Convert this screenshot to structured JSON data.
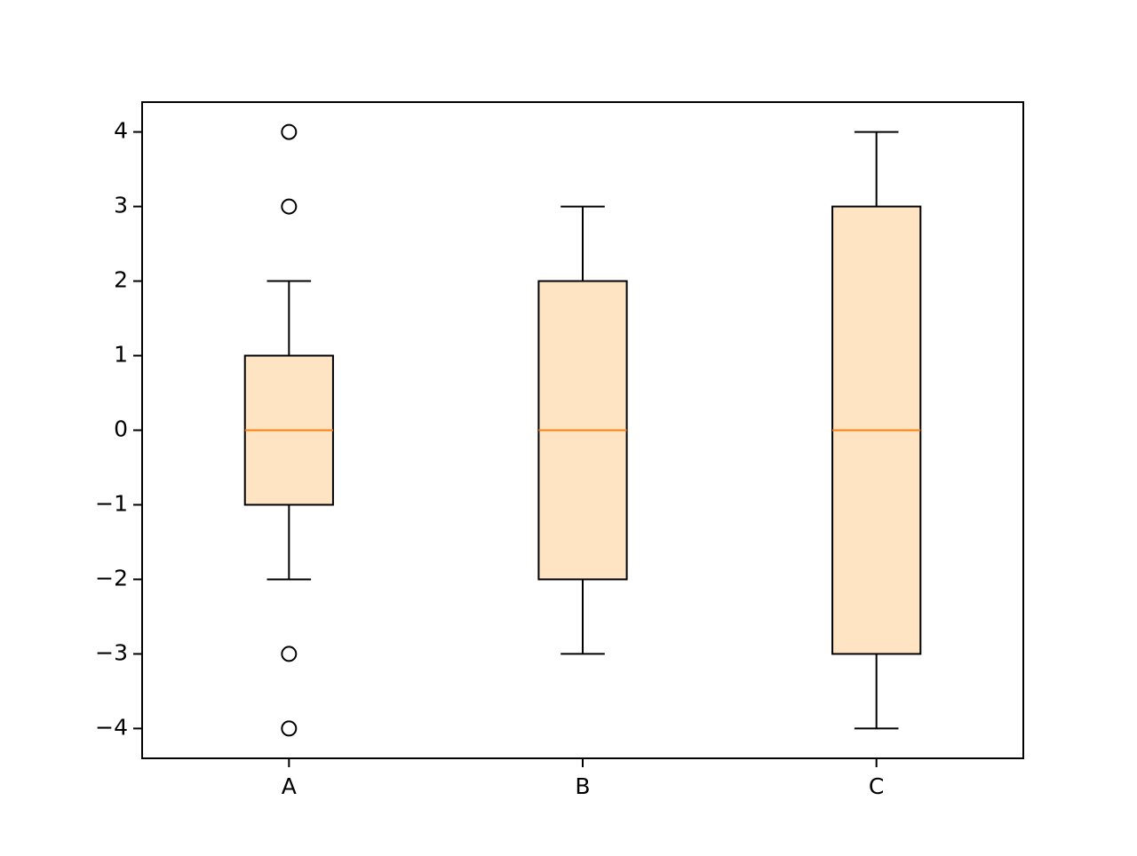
{
  "chart_data": {
    "type": "box",
    "categories": [
      "A",
      "B",
      "C"
    ],
    "boxes": [
      {
        "whislo": -2,
        "q1": -1,
        "med": 0,
        "q3": 1,
        "whishi": 2,
        "fliers": [
          -4,
          -3,
          3,
          4
        ]
      },
      {
        "whislo": -3,
        "q1": -2,
        "med": 0,
        "q3": 2,
        "whishi": 3,
        "fliers": []
      },
      {
        "whislo": -4,
        "q1": -3,
        "med": 0,
        "q3": 3,
        "whishi": 4,
        "fliers": []
      }
    ],
    "color": "#ffe4c4",
    "edge_color": "#000000",
    "median_color": "#ff7f0e",
    "ylim": [
      -4.4,
      4.4
    ],
    "yticks": [
      {
        "value": -4,
        "label": "−4"
      },
      {
        "value": -3,
        "label": "−3"
      },
      {
        "value": -2,
        "label": "−2"
      },
      {
        "value": -1,
        "label": "−1"
      },
      0,
      1,
      2,
      3,
      4
    ],
    "grid": false
  }
}
